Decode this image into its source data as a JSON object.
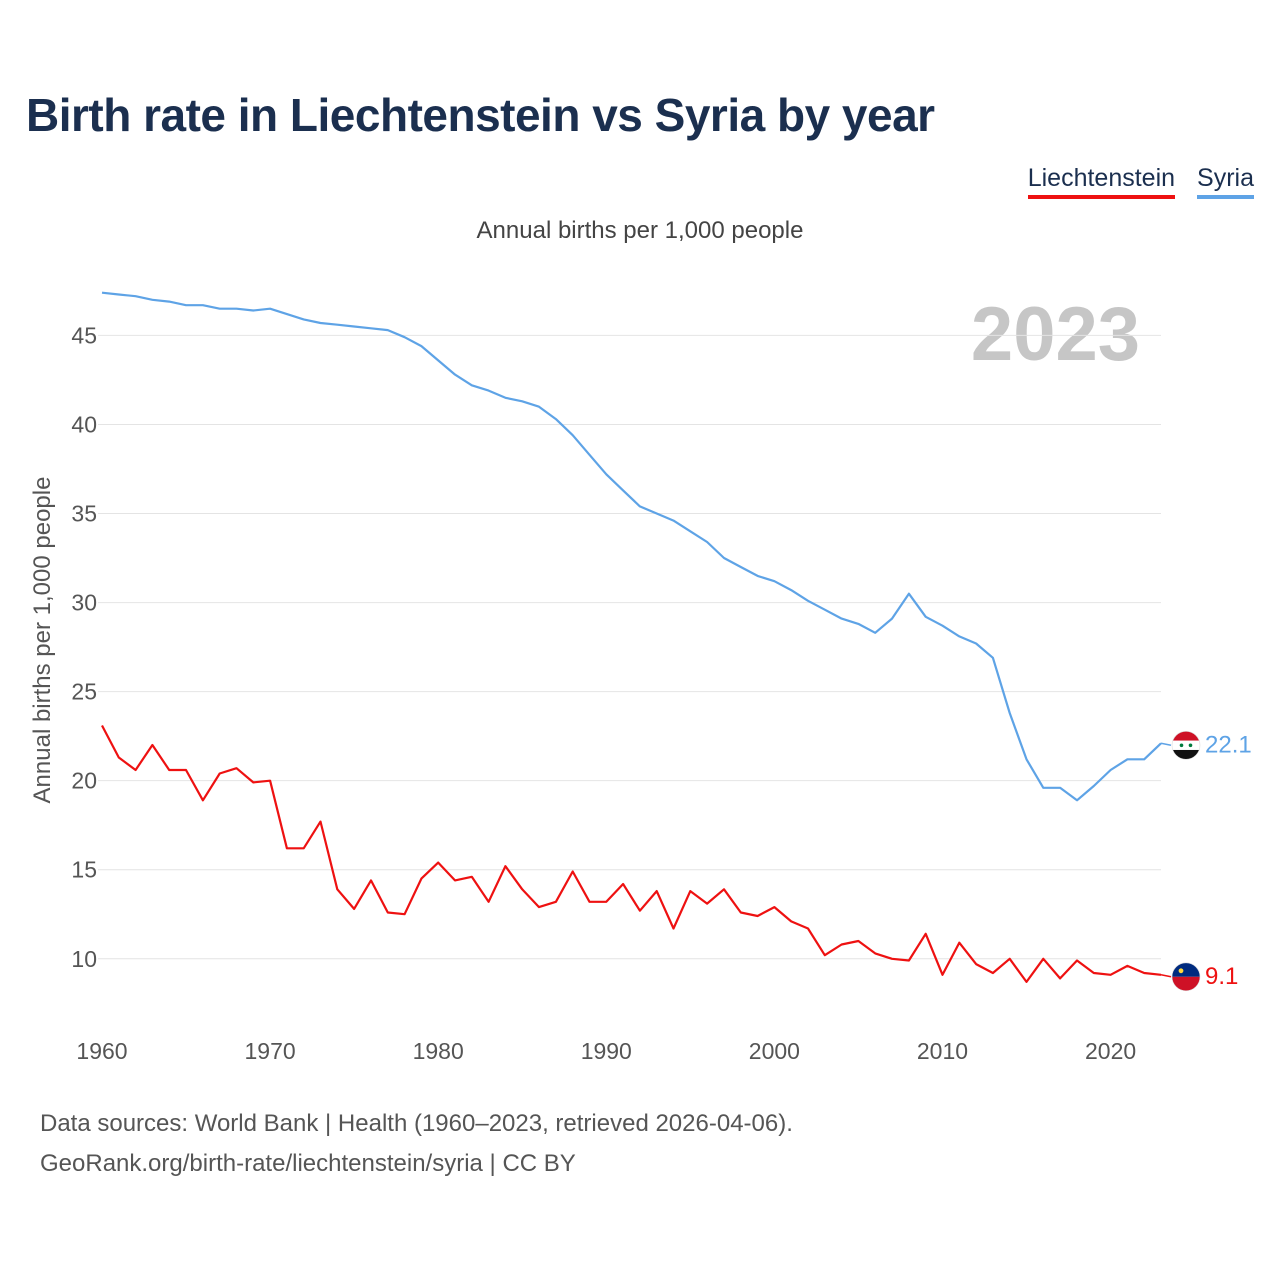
{
  "title": "Birth rate in Liechtenstein vs Syria by year",
  "legend": [
    "Liechtenstein",
    "Syria"
  ],
  "subtitle": "Annual births per 1,000 people",
  "footer": {
    "line1": "Data sources: World Bank | Health (1960–2023, retrieved 2026-04-06).",
    "line2": "GeoRank.org/birth-rate/liechtenstein/syria | CC BY"
  },
  "chart_data": {
    "type": "line",
    "title": "Birth rate in Liechtenstein vs Syria by year",
    "ylabel": "Annual births per 1,000 people",
    "xlabel": "",
    "year_label": "2023",
    "xlim": [
      1960,
      2023
    ],
    "ylim": [
      6,
      48
    ],
    "x_ticks": [
      1960,
      1970,
      1980,
      1990,
      2000,
      2010,
      2020
    ],
    "y_ticks": [
      10,
      15,
      20,
      25,
      30,
      35,
      40,
      45
    ],
    "grid": true,
    "x": [
      1960,
      1961,
      1962,
      1963,
      1964,
      1965,
      1966,
      1967,
      1968,
      1969,
      1970,
      1971,
      1972,
      1973,
      1974,
      1975,
      1976,
      1977,
      1978,
      1979,
      1980,
      1981,
      1982,
      1983,
      1984,
      1985,
      1986,
      1987,
      1988,
      1989,
      1990,
      1991,
      1992,
      1993,
      1994,
      1995,
      1996,
      1997,
      1998,
      1999,
      2000,
      2001,
      2002,
      2003,
      2004,
      2005,
      2006,
      2007,
      2008,
      2009,
      2010,
      2011,
      2012,
      2013,
      2014,
      2015,
      2016,
      2017,
      2018,
      2019,
      2020,
      2021,
      2022,
      2023
    ],
    "series": [
      {
        "name": "Liechtenstein",
        "color": "#ee1111",
        "end_label": "9.1",
        "values": [
          23.1,
          21.3,
          20.6,
          22.0,
          20.6,
          20.6,
          18.9,
          20.4,
          20.7,
          19.9,
          20.0,
          16.2,
          16.2,
          17.7,
          13.9,
          12.8,
          14.4,
          12.6,
          12.5,
          14.5,
          15.4,
          14.4,
          14.6,
          13.2,
          15.2,
          13.9,
          12.9,
          13.2,
          14.9,
          13.2,
          13.2,
          14.2,
          12.7,
          13.8,
          11.7,
          13.8,
          13.1,
          13.9,
          12.6,
          12.4,
          12.9,
          12.1,
          11.7,
          10.2,
          10.8,
          11.0,
          10.3,
          10.0,
          9.9,
          11.4,
          9.1,
          10.9,
          9.7,
          9.2,
          10.0,
          8.7,
          10.0,
          8.9,
          9.9,
          9.2,
          9.1,
          9.6,
          9.2,
          9.1
        ]
      },
      {
        "name": "Syria",
        "color": "#5ea3e6",
        "end_label": "22.1",
        "values": [
          47.4,
          47.3,
          47.2,
          47.0,
          46.9,
          46.7,
          46.7,
          46.5,
          46.5,
          46.4,
          46.5,
          46.2,
          45.9,
          45.7,
          45.6,
          45.5,
          45.4,
          45.3,
          44.9,
          44.4,
          43.6,
          42.8,
          42.2,
          41.9,
          41.5,
          41.3,
          41.0,
          40.3,
          39.4,
          38.3,
          37.2,
          36.3,
          35.4,
          35.0,
          34.6,
          34.0,
          33.4,
          32.5,
          32.0,
          31.5,
          31.2,
          30.7,
          30.1,
          29.6,
          29.1,
          28.8,
          28.3,
          29.1,
          30.5,
          29.2,
          28.7,
          28.1,
          27.7,
          26.9,
          23.8,
          21.2,
          19.6,
          19.6,
          18.9,
          19.7,
          20.6,
          21.2,
          21.2,
          22.1
        ]
      }
    ]
  }
}
